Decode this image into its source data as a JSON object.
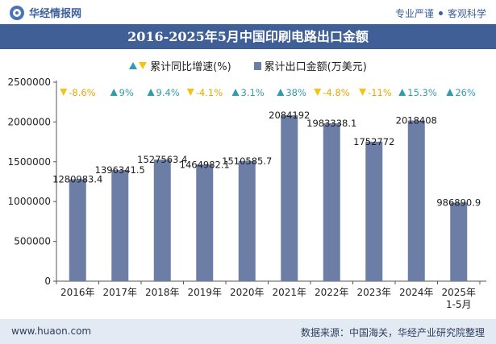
{
  "header": {
    "brand": "华经情报网",
    "tag_left": "专业严谨",
    "tag_right": "客观科学"
  },
  "title": "2016-2025年5月中国印刷电路出口金额",
  "legend": {
    "growth_label": "累计同比增速(%)",
    "value_label": "累计出口金额(万美元)"
  },
  "footer": {
    "website": "www.huaon.com",
    "source": "数据来源：中国海关，华经产业研究院整理"
  },
  "colors": {
    "bar": "#6d7ea6",
    "up": "#2f9bae",
    "down": "#f5c216",
    "up_text": "#2f9bae",
    "down_text": "#e6a700",
    "title_bg": "#3f5f96",
    "footer_bg": "#e3eaf4"
  },
  "chart_data": {
    "type": "bar",
    "categories": [
      "2016年",
      "2017年",
      "2018年",
      "2019年",
      "2020年",
      "2021年",
      "2022年",
      "2023年",
      "2024年",
      "2025年\n1-5月"
    ],
    "series": [
      {
        "name": "累计出口金额(万美元)",
        "values": [
          1280983.4,
          1396341.5,
          1527563.4,
          1464982.1,
          1510585.7,
          2084192,
          1983338.1,
          1752772,
          2018408,
          986890.9
        ],
        "labels": [
          "1280983.4",
          "1396341.5",
          "1527563.4",
          "1464982.1",
          "1510585.7",
          "2084192",
          "1983338.1",
          "1752772",
          "2018408",
          "986890.9"
        ]
      },
      {
        "name": "累计同比增速(%)",
        "values": [
          -8.6,
          9,
          9.4,
          -4.1,
          3.1,
          38,
          -4.8,
          -11,
          15.3,
          26
        ],
        "labels": [
          "-8.6%",
          "9%",
          "9.4%",
          "-4.1%",
          "3.1%",
          "38%",
          "-4.8%",
          "-11%",
          "15.3%",
          "26%"
        ]
      }
    ],
    "yticks": [
      "0",
      "500000",
      "1000000",
      "1500000",
      "2000000",
      "2500000"
    ],
    "ylim": [
      0,
      2500000
    ]
  }
}
